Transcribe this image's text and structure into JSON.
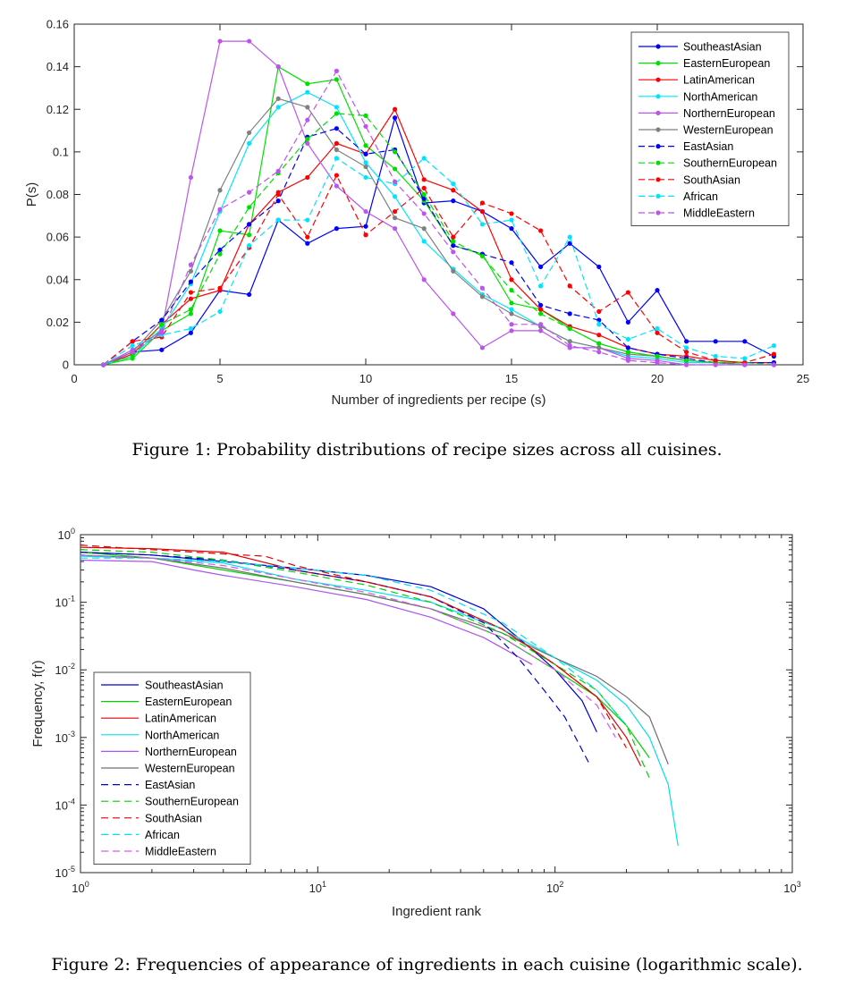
{
  "captions": {
    "fig1": "Figure 1: Probability distributions of recipe sizes across all cuisines.",
    "fig2": "Figure 2: Frequencies of appearance of ingredients in each cuisine (logarithmic scale)."
  },
  "chart_data": [
    {
      "type": "line",
      "xlabel": "Number of ingredients per recipe (s)",
      "ylabel": "P(s)",
      "xlim": [
        0,
        25
      ],
      "ylim": [
        0,
        0.16
      ],
      "xticks": [
        "0",
        "5",
        "10",
        "15",
        "20",
        "25"
      ],
      "yticks": [
        "0",
        "0.02",
        "0.04",
        "0.06",
        "0.08",
        "0.1",
        "0.12",
        "0.14",
        "0.16"
      ],
      "legend_position": "top-right",
      "x": [
        1,
        2,
        3,
        4,
        5,
        6,
        7,
        8,
        9,
        10,
        11,
        12,
        13,
        14,
        15,
        16,
        17,
        18,
        19,
        20,
        21,
        22,
        23,
        24
      ],
      "series": [
        {
          "name": "SoutheastAsian",
          "color": "#0000ff",
          "dash": "solid",
          "values": [
            0,
            0.006,
            0.007,
            0.015,
            0.035,
            0.033,
            0.068,
            0.057,
            0.064,
            0.065,
            0.116,
            0.076,
            0.077,
            0.072,
            0.064,
            0.046,
            0.057,
            0.046,
            0.02,
            0.035,
            0.011,
            0.011,
            0.011,
            0.004
          ]
        },
        {
          "name": "EasternEuropean",
          "color": "#00e000",
          "dash": "solid",
          "values": [
            0,
            0.003,
            0.016,
            0.024,
            0.063,
            0.061,
            0.14,
            0.132,
            0.134,
            0.103,
            0.092,
            0.077,
            0.056,
            0.052,
            0.029,
            0.026,
            0.017,
            0.01,
            0.006,
            0.004,
            0.002,
            0.001,
            0.001,
            0.001
          ]
        },
        {
          "name": "LatinAmerican",
          "color": "#ff0000",
          "dash": "solid",
          "values": [
            0,
            0.005,
            0.019,
            0.031,
            0.035,
            0.066,
            0.081,
            0.088,
            0.104,
            0.099,
            0.12,
            0.087,
            0.082,
            0.072,
            0.04,
            0.026,
            0.018,
            0.014,
            0.008,
            0.005,
            0.004,
            0.002,
            0.001,
            0.001
          ]
        },
        {
          "name": "NorthAmerican",
          "color": "#00e5ff",
          "dash": "solid",
          "values": [
            0,
            0.004,
            0.017,
            0.038,
            0.072,
            0.104,
            0.121,
            0.128,
            0.121,
            0.095,
            0.079,
            0.058,
            0.045,
            0.033,
            0.026,
            0.018,
            0.011,
            0.008,
            0.004,
            0.003,
            0.001,
            0.001,
            0,
            0
          ]
        },
        {
          "name": "NorthernEuropean",
          "color": "#bb55ee",
          "dash": "solid",
          "values": [
            0,
            0.007,
            0.016,
            0.088,
            0.152,
            0.152,
            0.14,
            0.104,
            0.084,
            0.072,
            0.064,
            0.04,
            0.024,
            0.008,
            0.016,
            0.016,
            0.008,
            0.008,
            0.003,
            0.002,
            0,
            0,
            0,
            0
          ]
        },
        {
          "name": "WesternEuropean",
          "color": "#808080",
          "dash": "solid",
          "values": [
            0,
            0.006,
            0.021,
            0.044,
            0.082,
            0.109,
            0.125,
            0.121,
            0.101,
            0.093,
            0.069,
            0.064,
            0.044,
            0.032,
            0.024,
            0.018,
            0.011,
            0.008,
            0.005,
            0.004,
            0.002,
            0.001,
            0,
            0
          ]
        },
        {
          "name": "EastAsian",
          "color": "#0000ff",
          "dash": "dashed",
          "values": [
            0,
            0.011,
            0.021,
            0.039,
            0.054,
            0.066,
            0.077,
            0.107,
            0.111,
            0.099,
            0.101,
            0.078,
            0.056,
            0.052,
            0.048,
            0.028,
            0.024,
            0.021,
            0.008,
            0.005,
            0.003,
            0.001,
            0.001,
            0.001
          ]
        },
        {
          "name": "SouthernEuropean",
          "color": "#00e000",
          "dash": "dashed",
          "values": [
            0,
            0.004,
            0.019,
            0.026,
            0.052,
            0.074,
            0.09,
            0.106,
            0.118,
            0.117,
            0.1,
            0.08,
            0.058,
            0.051,
            0.035,
            0.024,
            0.017,
            0.01,
            0.006,
            0.004,
            0.002,
            0.001,
            0.001,
            0
          ]
        },
        {
          "name": "SouthAsian",
          "color": "#ff0000",
          "dash": "dashed",
          "values": [
            0,
            0.011,
            0.013,
            0.034,
            0.036,
            0.055,
            0.08,
            0.06,
            0.089,
            0.061,
            0.072,
            0.083,
            0.06,
            0.076,
            0.071,
            0.063,
            0.037,
            0.025,
            0.034,
            0.015,
            0.006,
            0.002,
            0.001,
            0.005
          ]
        },
        {
          "name": "African",
          "color": "#00e5ff",
          "dash": "dashed",
          "values": [
            0,
            0.009,
            0.014,
            0.017,
            0.025,
            0.056,
            0.068,
            0.068,
            0.097,
            0.088,
            0.085,
            0.097,
            0.085,
            0.066,
            0.068,
            0.037,
            0.06,
            0.019,
            0.012,
            0.017,
            0.008,
            0.004,
            0.003,
            0.009
          ]
        },
        {
          "name": "MiddleEastern",
          "color": "#bb55ee",
          "dash": "dashed",
          "values": [
            0,
            0.006,
            0.015,
            0.047,
            0.073,
            0.081,
            0.091,
            0.115,
            0.138,
            0.112,
            0.086,
            0.071,
            0.053,
            0.036,
            0.019,
            0.019,
            0.009,
            0.006,
            0.002,
            0.001,
            0,
            0,
            0,
            0
          ]
        }
      ]
    },
    {
      "type": "line",
      "xlabel": "Ingredient rank",
      "ylabel": "Frequency, f(r)",
      "xscale": "log",
      "yscale": "log",
      "xlim": [
        1,
        1000
      ],
      "ylim": [
        1e-05,
        1
      ],
      "xticks": [
        {
          "value": 1,
          "base": "10",
          "exp": "0"
        },
        {
          "value": 10,
          "base": "10",
          "exp": "1"
        },
        {
          "value": 100,
          "base": "10",
          "exp": "2"
        },
        {
          "value": 1000,
          "base": "10",
          "exp": "3"
        }
      ],
      "yticks": [
        {
          "value": 1,
          "base": "10",
          "exp": "0"
        },
        {
          "value": 0.1,
          "base": "10",
          "exp": "-1"
        },
        {
          "value": 0.01,
          "base": "10",
          "exp": "-2"
        },
        {
          "value": 0.001,
          "base": "10",
          "exp": "-3"
        },
        {
          "value": 0.0001,
          "base": "10",
          "exp": "-4"
        },
        {
          "value": 1e-05,
          "base": "10",
          "exp": "-5"
        }
      ],
      "legend_position": "bottom-left",
      "series": [
        {
          "name": "SoutheastAsian",
          "color": "#0000c8",
          "dash": "solid",
          "points": [
            [
              1,
              0.55
            ],
            [
              2,
              0.5
            ],
            [
              4,
              0.4
            ],
            [
              8,
              0.32
            ],
            [
              16,
              0.25
            ],
            [
              30,
              0.17
            ],
            [
              50,
              0.08
            ],
            [
              80,
              0.02
            ],
            [
              100,
              0.01
            ],
            [
              130,
              0.0035
            ],
            [
              150,
              0.0012
            ]
          ]
        },
        {
          "name": "EasternEuropean",
          "color": "#00d000",
          "dash": "solid",
          "points": [
            [
              1,
              0.55
            ],
            [
              2,
              0.45
            ],
            [
              4,
              0.3
            ],
            [
              8,
              0.2
            ],
            [
              16,
              0.13
            ],
            [
              30,
              0.08
            ],
            [
              60,
              0.03
            ],
            [
              100,
              0.01
            ],
            [
              150,
              0.004
            ],
            [
              200,
              0.0015
            ],
            [
              250,
              0.0005
            ]
          ]
        },
        {
          "name": "LatinAmerican",
          "color": "#e00000",
          "dash": "solid",
          "points": [
            [
              1,
              0.65
            ],
            [
              2,
              0.62
            ],
            [
              4,
              0.55
            ],
            [
              8,
              0.3
            ],
            [
              16,
              0.2
            ],
            [
              30,
              0.12
            ],
            [
              60,
              0.04
            ],
            [
              100,
              0.012
            ],
            [
              150,
              0.004
            ],
            [
              200,
              0.001
            ],
            [
              230,
              0.00038
            ]
          ]
        },
        {
          "name": "NorthAmerican",
          "color": "#00e0f0",
          "dash": "solid",
          "points": [
            [
              1,
              0.48
            ],
            [
              2,
              0.45
            ],
            [
              4,
              0.38
            ],
            [
              8,
              0.22
            ],
            [
              16,
              0.15
            ],
            [
              30,
              0.1
            ],
            [
              60,
              0.04
            ],
            [
              100,
              0.015
            ],
            [
              150,
              0.007
            ],
            [
              200,
              0.003
            ],
            [
              250,
              0.001
            ],
            [
              300,
              0.0002
            ],
            [
              330,
              2.5e-05
            ]
          ]
        },
        {
          "name": "NorthernEuropean",
          "color": "#aa55ee",
          "dash": "solid",
          "points": [
            [
              1,
              0.42
            ],
            [
              2,
              0.4
            ],
            [
              3,
              0.3
            ],
            [
              4,
              0.25
            ],
            [
              8,
              0.17
            ],
            [
              16,
              0.11
            ],
            [
              30,
              0.06
            ],
            [
              50,
              0.03
            ],
            [
              80,
              0.012
            ]
          ]
        },
        {
          "name": "WesternEuropean",
          "color": "#707070",
          "dash": "solid",
          "points": [
            [
              1,
              0.5
            ],
            [
              2,
              0.45
            ],
            [
              4,
              0.32
            ],
            [
              8,
              0.2
            ],
            [
              16,
              0.13
            ],
            [
              30,
              0.08
            ],
            [
              60,
              0.035
            ],
            [
              100,
              0.015
            ],
            [
              150,
              0.008
            ],
            [
              200,
              0.004
            ],
            [
              250,
              0.002
            ],
            [
              300,
              0.0004
            ]
          ]
        },
        {
          "name": "EastAsian",
          "color": "#0000c8",
          "dash": "dashed",
          "points": [
            [
              1,
              0.55
            ],
            [
              2,
              0.5
            ],
            [
              4,
              0.42
            ],
            [
              8,
              0.3
            ],
            [
              16,
              0.2
            ],
            [
              30,
              0.12
            ],
            [
              50,
              0.05
            ],
            [
              70,
              0.015
            ],
            [
              90,
              0.005
            ],
            [
              110,
              0.002
            ],
            [
              140,
              0.0004
            ]
          ]
        },
        {
          "name": "SouthernEuropean",
          "color": "#00d000",
          "dash": "dashed",
          "points": [
            [
              1,
              0.6
            ],
            [
              2,
              0.55
            ],
            [
              4,
              0.42
            ],
            [
              8,
              0.28
            ],
            [
              16,
              0.18
            ],
            [
              30,
              0.1
            ],
            [
              60,
              0.035
            ],
            [
              100,
              0.012
            ],
            [
              150,
              0.005
            ],
            [
              200,
              0.0015
            ],
            [
              250,
              0.00025
            ]
          ]
        },
        {
          "name": "SouthAsian",
          "color": "#e00000",
          "dash": "dashed",
          "points": [
            [
              1,
              0.7
            ],
            [
              2,
              0.6
            ],
            [
              4,
              0.52
            ],
            [
              6,
              0.48
            ],
            [
              8,
              0.35
            ],
            [
              16,
              0.2
            ],
            [
              30,
              0.12
            ],
            [
              60,
              0.04
            ],
            [
              100,
              0.012
            ],
            [
              150,
              0.004
            ],
            [
              200,
              0.0007
            ]
          ]
        },
        {
          "name": "African",
          "color": "#00e0f0",
          "dash": "dashed",
          "points": [
            [
              1,
              0.45
            ],
            [
              2,
              0.45
            ],
            [
              4,
              0.4
            ],
            [
              8,
              0.32
            ],
            [
              16,
              0.25
            ],
            [
              30,
              0.15
            ],
            [
              60,
              0.05
            ],
            [
              100,
              0.015
            ],
            [
              150,
              0.005
            ],
            [
              200,
              0.0015
            ]
          ]
        },
        {
          "name": "MiddleEastern",
          "color": "#dd55ee",
          "dash": "dashed",
          "points": [
            [
              1,
              0.5
            ],
            [
              2,
              0.45
            ],
            [
              4,
              0.35
            ],
            [
              8,
              0.22
            ],
            [
              16,
              0.14
            ],
            [
              30,
              0.08
            ],
            [
              60,
              0.03
            ],
            [
              100,
              0.01
            ],
            [
              150,
              0.003
            ],
            [
              180,
              0.001
            ]
          ]
        }
      ]
    }
  ]
}
